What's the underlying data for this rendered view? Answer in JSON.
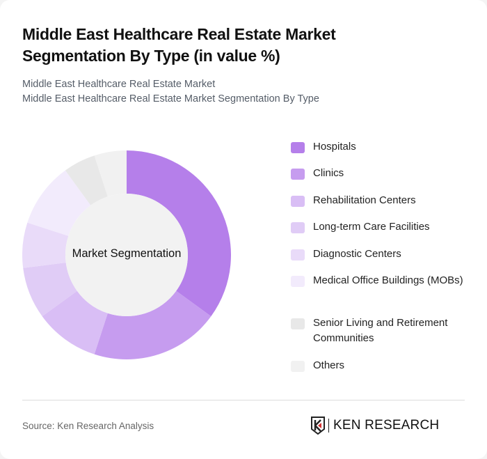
{
  "header": {
    "title": "Middle East Healthcare Real Estate Market Segmentation By Type (in value %)",
    "subtitle_1": "Middle East Healthcare Real Estate Market",
    "subtitle_2": "Middle East Healthcare Real Estate Market Segmentation By Type"
  },
  "chart": {
    "center_label": "Market Segmentation"
  },
  "legend": [
    {
      "label": "Hospitals",
      "color": "#b57fea"
    },
    {
      "label": "Clinics",
      "color": "#c69cef"
    },
    {
      "label": "Rehabilitation Centers",
      "color": "#d9bef5"
    },
    {
      "label": "Long-term Care Facilities",
      "color": "#e0ccf6"
    },
    {
      "label": "Diagnostic Centers",
      "color": "#e9dbf9"
    },
    {
      "label": "Medical Office Buildings (MOBs)",
      "color": "#f2ebfc"
    },
    {
      "label": "Senior Living and Retirement Communities",
      "color": "#e8e8e8"
    },
    {
      "label": "Others",
      "color": "#f1f1f1"
    }
  ],
  "footer": {
    "source": "Source: Ken Research Analysis",
    "logo_text": "KEN RESEARCH"
  },
  "chart_data": {
    "type": "pie",
    "title": "Middle East Healthcare Real Estate Market Segmentation By Type (in value %)",
    "subtitle": "Middle East Healthcare Real Estate Market Segmentation By Type",
    "center_label": "Market Segmentation",
    "categories": [
      "Hospitals",
      "Clinics",
      "Rehabilitation Centers",
      "Long-term Care Facilities",
      "Diagnostic Centers",
      "Medical Office Buildings (MOBs)",
      "Senior Living and Retirement Communities",
      "Others"
    ],
    "values": [
      35,
      20,
      10,
      8,
      7,
      10,
      5,
      5
    ],
    "unit": "%",
    "donut": true,
    "legend_position": "right"
  }
}
